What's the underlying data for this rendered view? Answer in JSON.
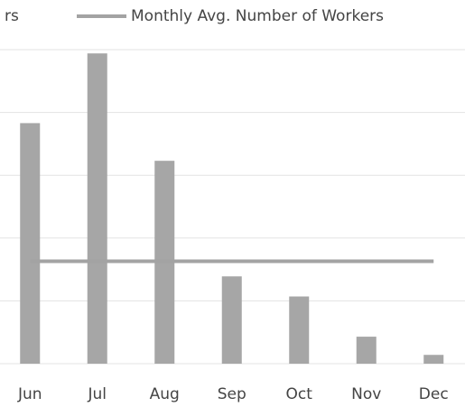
{
  "chart_data": {
    "type": "bar",
    "categories": [
      "Jun",
      "Jul",
      "Aug",
      "Sep",
      "Oct",
      "Nov",
      "Dec"
    ],
    "series": [
      {
        "name": "rs",
        "type": "bar",
        "color": "#a6a6a6",
        "values": [
          3.83,
          4.94,
          3.23,
          1.39,
          1.07,
          0.43,
          0.14
        ]
      },
      {
        "name": "Monthly Avg. Number of Workers",
        "type": "line",
        "color": "#a3a3a3",
        "values": [
          1.63,
          1.63,
          1.63,
          1.63,
          1.63,
          1.63,
          1.63
        ]
      }
    ],
    "ylim": [
      0,
      5
    ],
    "yticks": [
      0,
      1,
      2,
      3,
      4,
      5
    ],
    "grid": true,
    "legend": "top"
  }
}
